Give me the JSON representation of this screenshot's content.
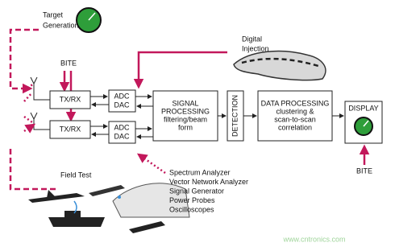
{
  "nodes": [
    {
      "id": "target",
      "lines": [
        "Target",
        "Generation"
      ]
    },
    {
      "id": "bite-top",
      "lines": [
        "BITE"
      ]
    },
    {
      "id": "txrx-1",
      "lines": [
        "TX/RX"
      ]
    },
    {
      "id": "txrx-2",
      "lines": [
        "TX/RX"
      ]
    },
    {
      "id": "adc-1",
      "lines": [
        "ADC",
        "DAC"
      ]
    },
    {
      "id": "adc-2",
      "lines": [
        "ADC",
        "DAC"
      ]
    },
    {
      "id": "signal",
      "lines": [
        "SIGNAL",
        "PROCESSING",
        "filtering/beam",
        "form"
      ]
    },
    {
      "id": "detection",
      "lines": [
        "DETECTION"
      ]
    },
    {
      "id": "data",
      "lines": [
        "DATA PROCESSING",
        "clustering &",
        "scan-to-scan",
        "correlation"
      ]
    },
    {
      "id": "display",
      "lines": [
        "DISPLAY"
      ]
    },
    {
      "id": "bite-bottom",
      "lines": [
        "BITE"
      ]
    },
    {
      "id": "digital",
      "lines": [
        "Digital",
        "Injection"
      ]
    },
    {
      "id": "field",
      "lines": [
        "Field Test"
      ]
    },
    {
      "id": "instruments",
      "lines": [
        "Spectrum Analyzer",
        "Vector Network Analyzer",
        "Signal Generator",
        "Power Probes",
        "Oscilloscopes"
      ]
    }
  ],
  "watermark": "www.cntronics.com"
}
